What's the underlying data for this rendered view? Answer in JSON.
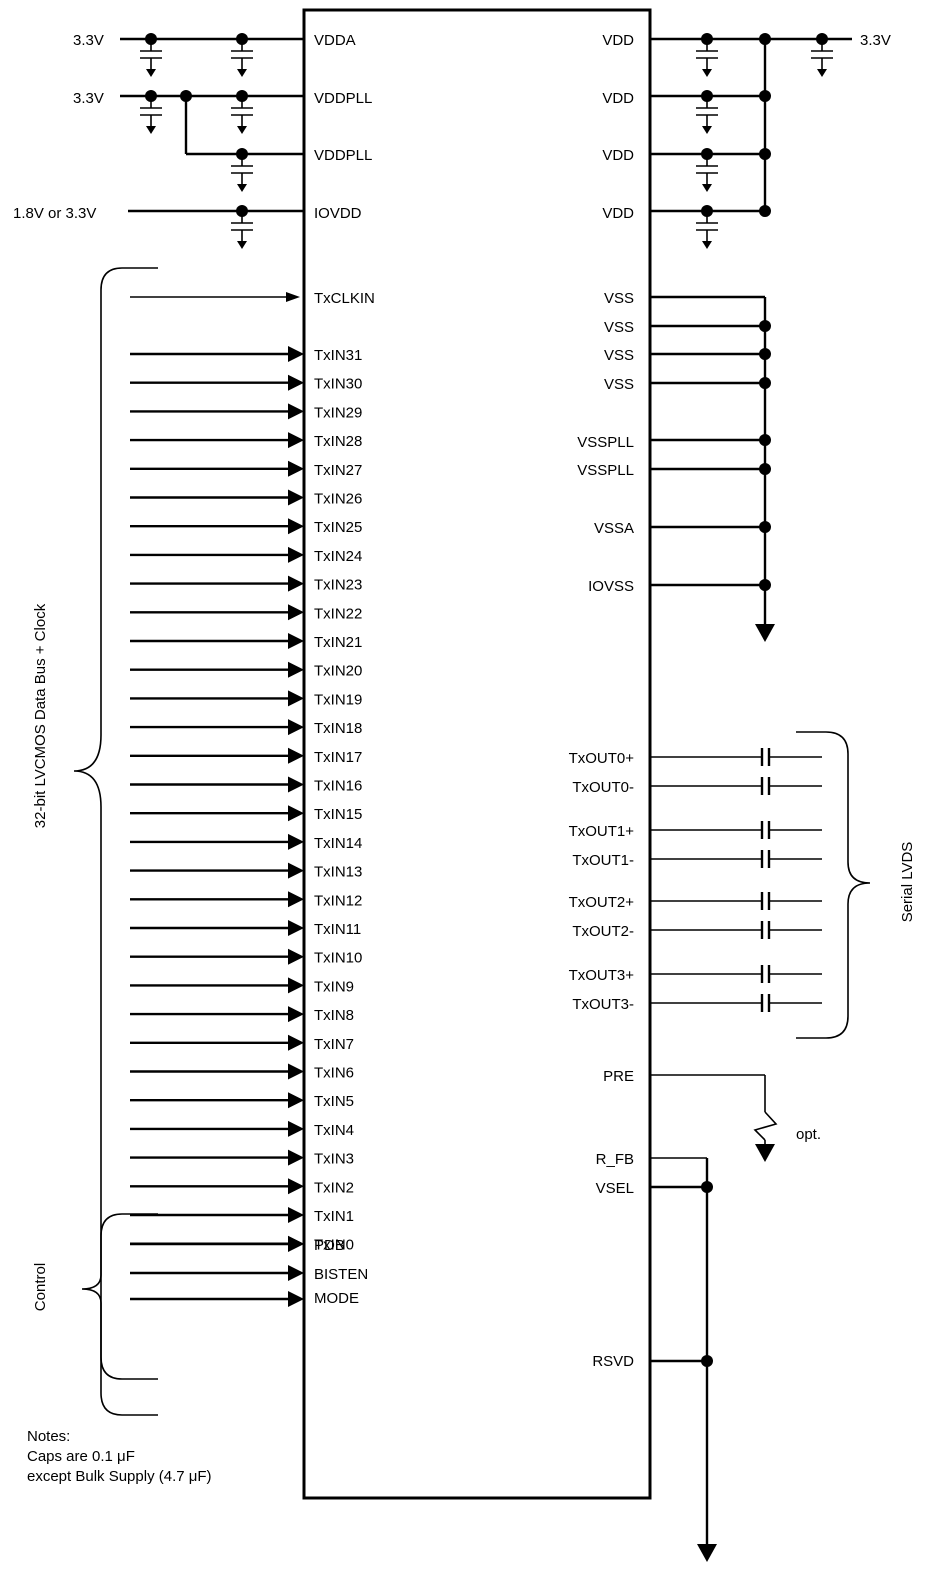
{
  "supply_labels": {
    "vdda": "3.3V",
    "vddpll": "3.3V",
    "iovdd": "1.8V or 3.3V",
    "vdd": "3.3V"
  },
  "left_power_pins": [
    "VDDA",
    "VDDPLL",
    "VDDPLL",
    "IOVDD"
  ],
  "right_power_pins": [
    "VDD",
    "VDD",
    "VDD",
    "VDD"
  ],
  "ground_pins": [
    "VSS",
    "VSS",
    "VSS",
    "VSS",
    "VSSPLL",
    "VSSPLL",
    "VSSA",
    "IOVSS"
  ],
  "data_pins": [
    "TxCLKIN",
    "TxIN31",
    "TxIN30",
    "TxIN29",
    "TxIN28",
    "TxIN27",
    "TxIN26",
    "TxIN25",
    "TxIN24",
    "TxIN23",
    "TxIN22",
    "TxIN21",
    "TxIN20",
    "TxIN19",
    "TxIN18",
    "TxIN17",
    "TxIN16",
    "TxIN15",
    "TxIN14",
    "TxIN13",
    "TxIN12",
    "TxIN11",
    "TxIN10",
    "TxIN9",
    "TxIN8",
    "TxIN7",
    "TxIN6",
    "TxIN5",
    "TxIN4",
    "TxIN3",
    "TxIN2",
    "TxIN1",
    "TxIN0"
  ],
  "control_pins": [
    "PDB",
    "BISTEN",
    "MODE"
  ],
  "lvds_pins": [
    "TxOUT0+",
    "TxOUT0-",
    "TxOUT1+",
    "TxOUT1-",
    "TxOUT2+",
    "TxOUT2-",
    "TxOUT3+",
    "TxOUT3-"
  ],
  "misc_pins": {
    "pre": "PRE",
    "r_fb": "R_FB",
    "vsel": "VSEL",
    "rsvd": "RSVD"
  },
  "group_labels": {
    "data_bus": "32-bit LVCMOS Data Bus + Clock",
    "control": "Control",
    "serial": "Serial LVDS",
    "opt": "opt."
  },
  "notes": {
    "title": "Notes:",
    "line1": "Caps are 0.1 μF",
    "line2": "except Bulk Supply (4.7 μF)"
  }
}
